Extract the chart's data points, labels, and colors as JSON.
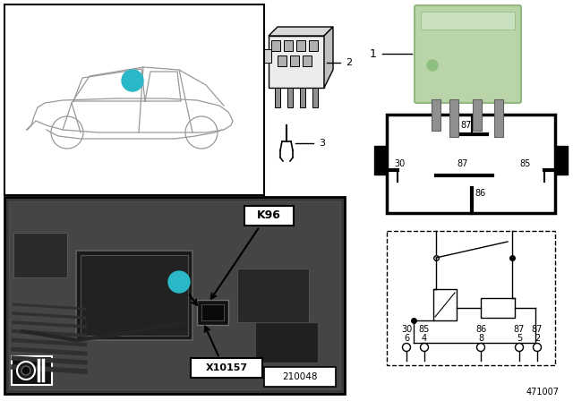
{
  "bg_color": "#ffffff",
  "fig_width": 6.4,
  "fig_height": 4.48,
  "dpi": 100,
  "diagram_number": "471007",
  "relay_color": "#b8d4a8",
  "relay_edge_color": "#90b880",
  "cyan_circle_color": "#2ab8c8",
  "black": "#000000",
  "white": "#ffffff",
  "photo_bg": "#505050",
  "car_line_color": "#999999",
  "label_bg": "#f0f0f0",
  "conn_face": "#e8e8e8",
  "conn_dark": "#c0c0c0",
  "pin_face": "#a0a0a0"
}
